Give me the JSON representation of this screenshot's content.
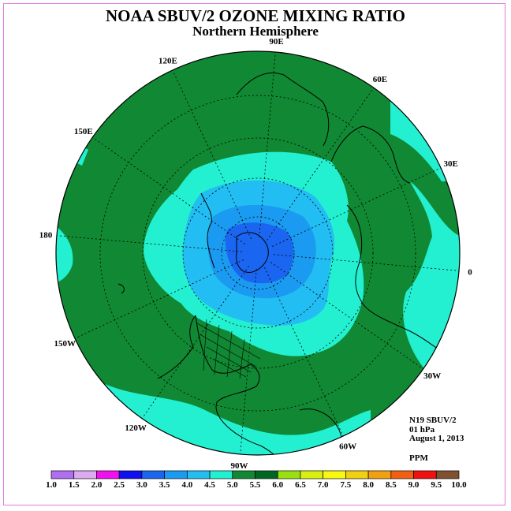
{
  "title": "NOAA SBUV/2 OZONE MIXING RATIO",
  "subtitle": "Northern Hemisphere",
  "info": {
    "instrument": "N19 SBUV/2",
    "level": "01 hPa",
    "date": "August 1, 2013",
    "units": "PPM"
  },
  "longitude_labels": [
    {
      "text": "90E",
      "lon": 90
    },
    {
      "text": "60E",
      "lon": 60
    },
    {
      "text": "30E",
      "lon": 30
    },
    {
      "text": "0",
      "lon": 0
    },
    {
      "text": "30W",
      "lon": -30
    },
    {
      "text": "60W",
      "lon": -60
    },
    {
      "text": "90W",
      "lon": -90
    },
    {
      "text": "120W",
      "lon": -120
    },
    {
      "text": "150W",
      "lon": -150
    },
    {
      "text": "180",
      "lon": 180
    },
    {
      "text": "150E",
      "lon": 150
    },
    {
      "text": "120E",
      "lon": 120
    }
  ],
  "colors": {
    "dark_green": "#118833",
    "aqua": "#22f0d0",
    "light_blue": "#22bdf2",
    "mid_blue": "#1a9af0",
    "blue": "#1a66f0",
    "frame": "#e07be0"
  },
  "colorbar": {
    "ticks": [
      "1.0",
      "1.5",
      "2.0",
      "2.5",
      "3.0",
      "3.5",
      "4.0",
      "4.5",
      "5.0",
      "5.5",
      "6.0",
      "6.5",
      "7.0",
      "7.5",
      "8.0",
      "8.5",
      "9.0",
      "9.5",
      "10.0"
    ],
    "colors": [
      "#b06ef0",
      "#dcaaf0",
      "#f010f0",
      "#1010f0",
      "#1a66f0",
      "#1a9af0",
      "#22bdf2",
      "#22f0d0",
      "#118833",
      "#006622",
      "#99e010",
      "#d8f010",
      "#f8f810",
      "#f0d010",
      "#f0a010",
      "#f06010",
      "#f01010",
      "#805030"
    ]
  }
}
